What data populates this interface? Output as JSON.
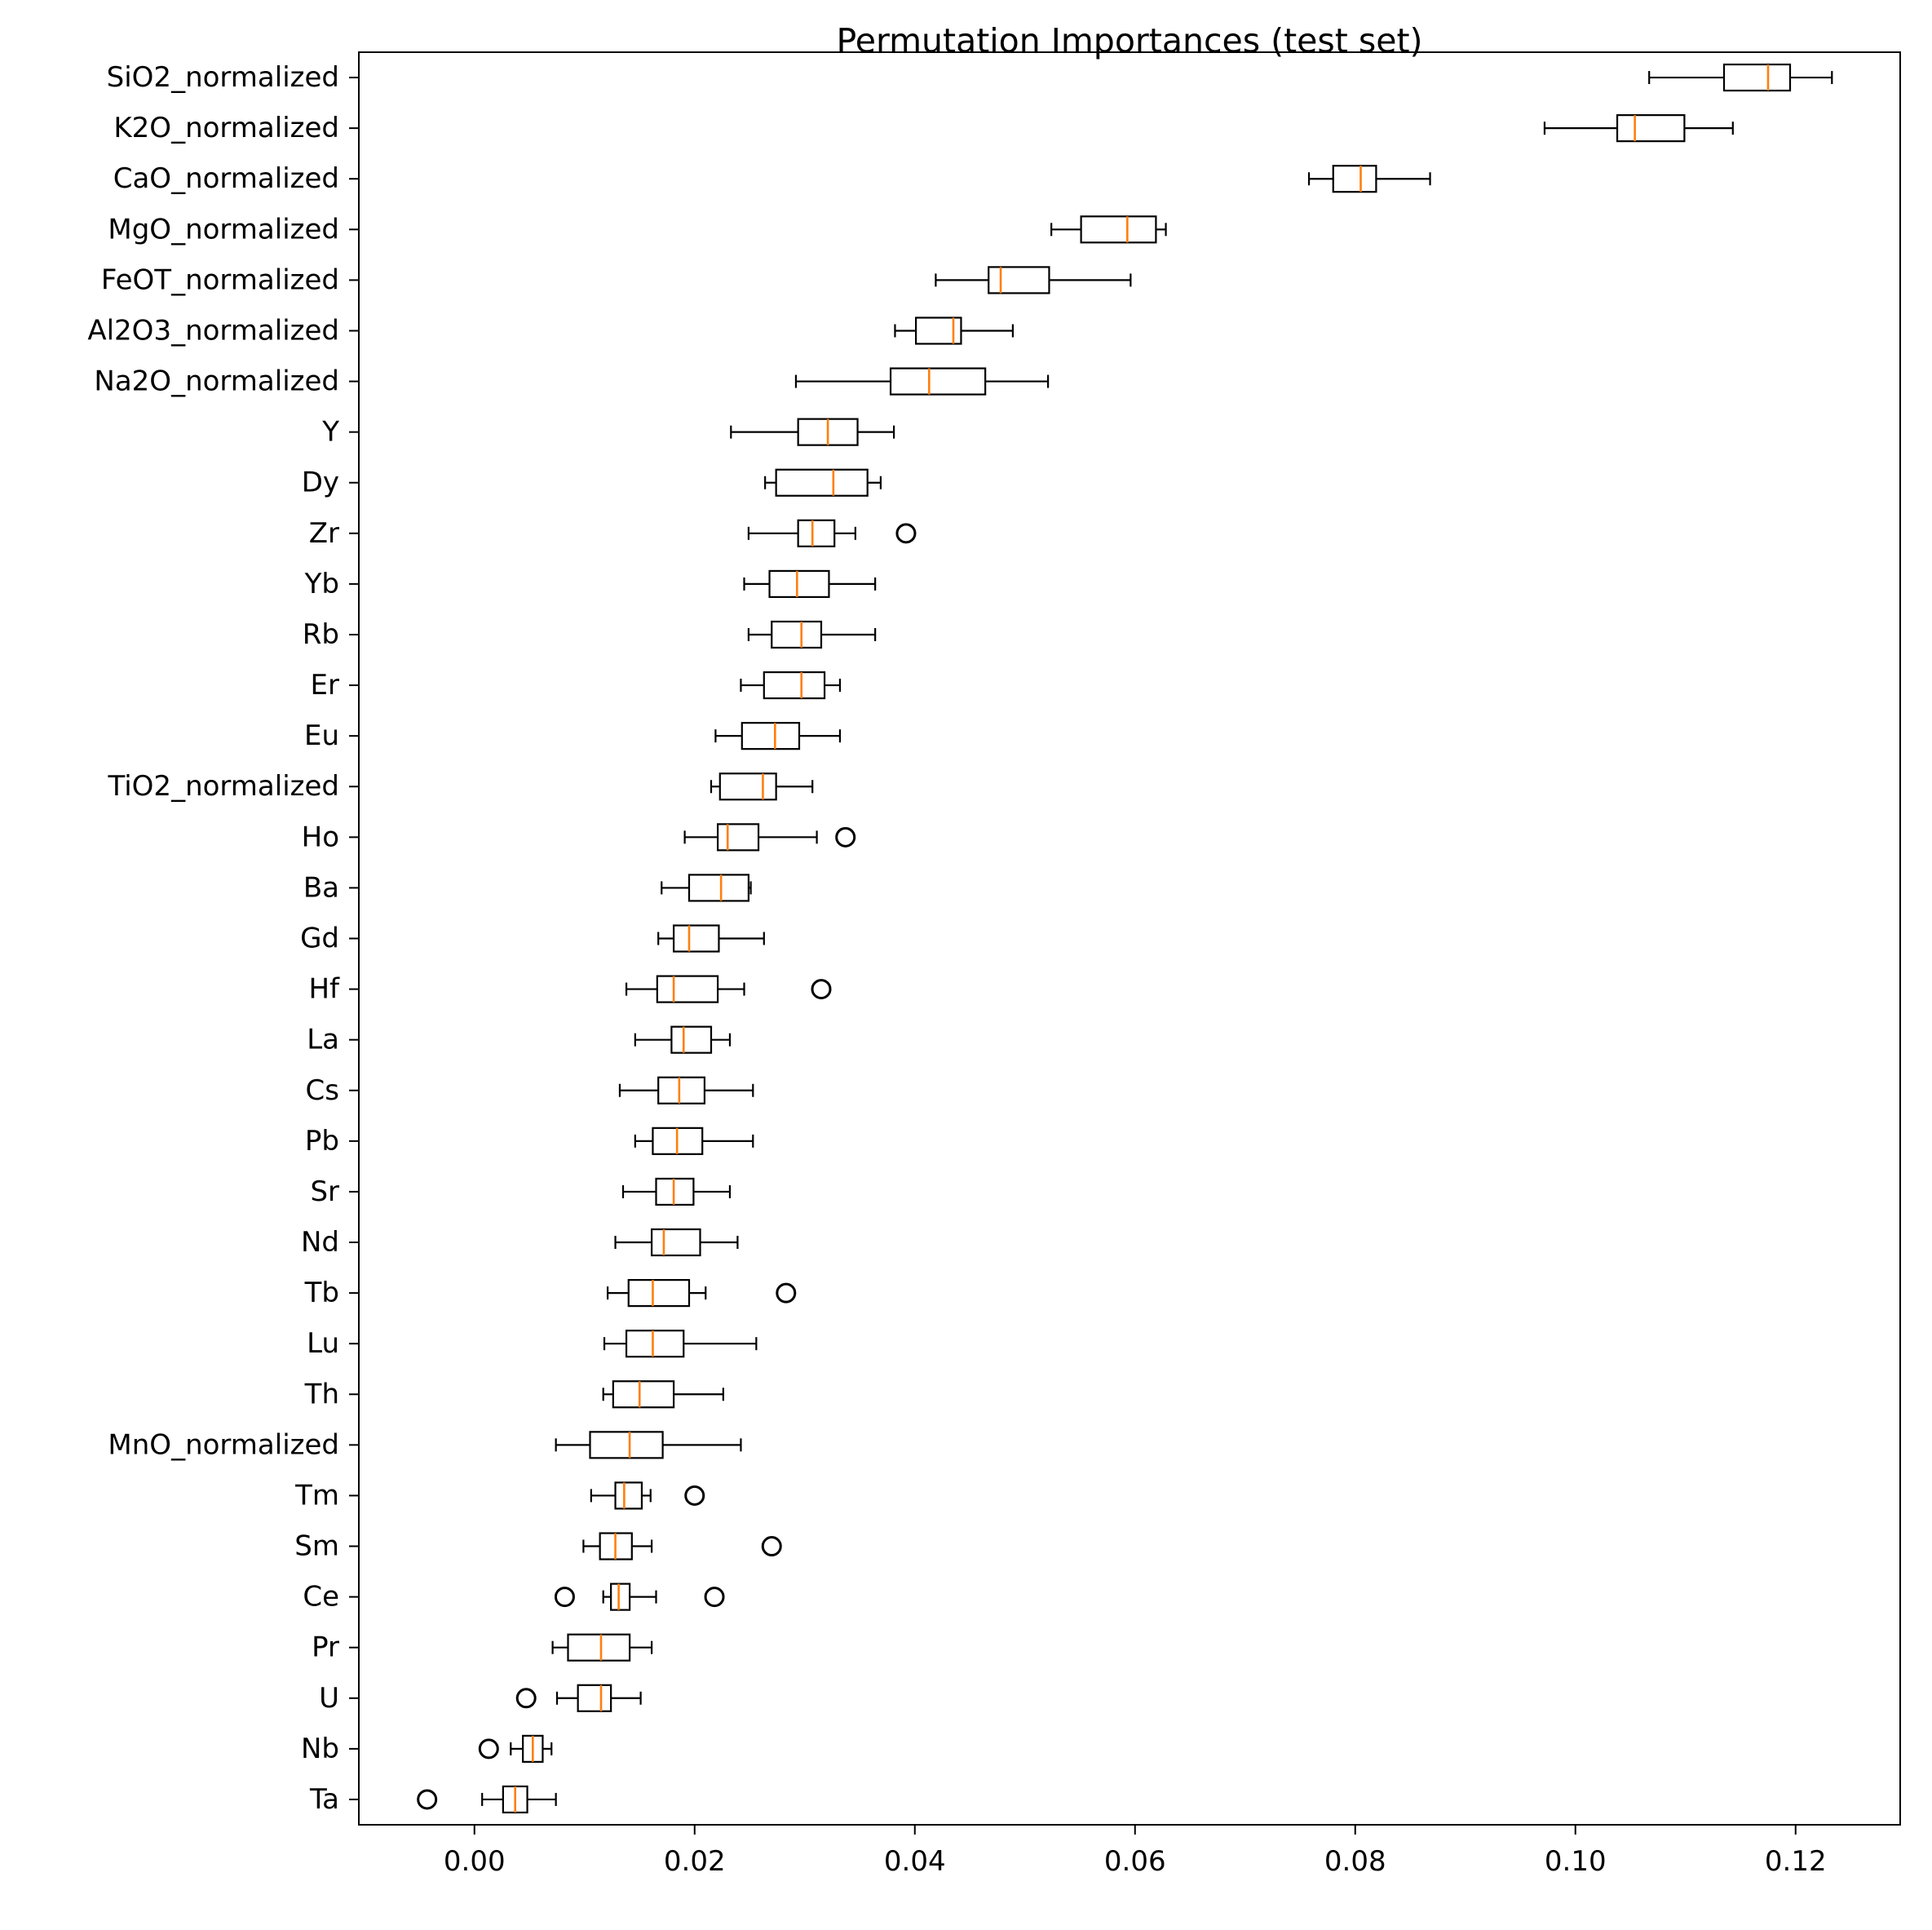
{
  "chart_data": {
    "type": "boxplot",
    "orientation": "horizontal",
    "title": "Permutation Importances (test set)",
    "xlabel": "",
    "ylabel": "",
    "xlim": [
      -0.0105,
      0.1295
    ],
    "xticks": [
      0.0,
      0.02,
      0.04,
      0.06,
      0.08,
      0.1,
      0.12
    ],
    "xtick_labels": [
      "0.00",
      "0.02",
      "0.04",
      "0.06",
      "0.08",
      "0.10",
      "0.12"
    ],
    "grid": false,
    "colors": {
      "box": "#000000",
      "median": "#ff7f0e",
      "whisker": "#000000",
      "flier": "#000000",
      "axes": "#000000"
    },
    "features": [
      {
        "label": "SiO2_normalized",
        "whisker_low": 0.1067,
        "q1": 0.1135,
        "median": 0.1175,
        "q3": 0.1195,
        "whisker_high": 0.1233,
        "outliers": []
      },
      {
        "label": "K2O_normalized",
        "whisker_low": 0.0972,
        "q1": 0.1038,
        "median": 0.1054,
        "q3": 0.1099,
        "whisker_high": 0.1143,
        "outliers": []
      },
      {
        "label": "CaO_normalized",
        "whisker_low": 0.0758,
        "q1": 0.078,
        "median": 0.0805,
        "q3": 0.0819,
        "whisker_high": 0.0868,
        "outliers": []
      },
      {
        "label": "MgO_normalized",
        "whisker_low": 0.0524,
        "q1": 0.0551,
        "median": 0.0593,
        "q3": 0.0619,
        "whisker_high": 0.0628,
        "outliers": []
      },
      {
        "label": "FeOT_normalized",
        "whisker_low": 0.0419,
        "q1": 0.0467,
        "median": 0.0478,
        "q3": 0.0522,
        "whisker_high": 0.0596,
        "outliers": []
      },
      {
        "label": "Al2O3_normalized",
        "whisker_low": 0.0382,
        "q1": 0.0401,
        "median": 0.0435,
        "q3": 0.0442,
        "whisker_high": 0.0489,
        "outliers": []
      },
      {
        "label": "Na2O_normalized",
        "whisker_low": 0.0292,
        "q1": 0.0378,
        "median": 0.0413,
        "q3": 0.0464,
        "whisker_high": 0.0521,
        "outliers": []
      },
      {
        "label": "Y",
        "whisker_low": 0.0233,
        "q1": 0.0294,
        "median": 0.0321,
        "q3": 0.0348,
        "whisker_high": 0.0381,
        "outliers": []
      },
      {
        "label": "Dy",
        "whisker_low": 0.0264,
        "q1": 0.0274,
        "median": 0.0326,
        "q3": 0.0357,
        "whisker_high": 0.0369,
        "outliers": []
      },
      {
        "label": "Zr",
        "whisker_low": 0.0249,
        "q1": 0.0294,
        "median": 0.0307,
        "q3": 0.0327,
        "whisker_high": 0.0346,
        "outliers": [
          0.0392
        ]
      },
      {
        "label": "Yb",
        "whisker_low": 0.0245,
        "q1": 0.0268,
        "median": 0.0293,
        "q3": 0.0322,
        "whisker_high": 0.0364,
        "outliers": []
      },
      {
        "label": "Rb",
        "whisker_low": 0.0249,
        "q1": 0.027,
        "median": 0.0297,
        "q3": 0.0315,
        "whisker_high": 0.0364,
        "outliers": []
      },
      {
        "label": "Er",
        "whisker_low": 0.0242,
        "q1": 0.0263,
        "median": 0.0297,
        "q3": 0.0318,
        "whisker_high": 0.0332,
        "outliers": []
      },
      {
        "label": "Eu",
        "whisker_low": 0.0219,
        "q1": 0.0243,
        "median": 0.0273,
        "q3": 0.0295,
        "whisker_high": 0.0332,
        "outliers": []
      },
      {
        "label": "TiO2_normalized",
        "whisker_low": 0.0215,
        "q1": 0.0223,
        "median": 0.0262,
        "q3": 0.0274,
        "whisker_high": 0.0307,
        "outliers": []
      },
      {
        "label": "Ho",
        "whisker_low": 0.0191,
        "q1": 0.0221,
        "median": 0.023,
        "q3": 0.0258,
        "whisker_high": 0.0311,
        "outliers": [
          0.0337
        ]
      },
      {
        "label": "Ba",
        "whisker_low": 0.017,
        "q1": 0.0195,
        "median": 0.0224,
        "q3": 0.0249,
        "whisker_high": 0.0251,
        "outliers": []
      },
      {
        "label": "Gd",
        "whisker_low": 0.0167,
        "q1": 0.0181,
        "median": 0.0195,
        "q3": 0.0222,
        "whisker_high": 0.0263,
        "outliers": []
      },
      {
        "label": "Hf",
        "whisker_low": 0.0138,
        "q1": 0.0166,
        "median": 0.0181,
        "q3": 0.0221,
        "whisker_high": 0.0245,
        "outliers": [
          0.0315
        ]
      },
      {
        "label": "La",
        "whisker_low": 0.0146,
        "q1": 0.0179,
        "median": 0.019,
        "q3": 0.0215,
        "whisker_high": 0.0232,
        "outliers": []
      },
      {
        "label": "Cs",
        "whisker_low": 0.0132,
        "q1": 0.0167,
        "median": 0.0186,
        "q3": 0.0209,
        "whisker_high": 0.0253,
        "outliers": []
      },
      {
        "label": "Pb",
        "whisker_low": 0.0146,
        "q1": 0.0162,
        "median": 0.0184,
        "q3": 0.0207,
        "whisker_high": 0.0253,
        "outliers": []
      },
      {
        "label": "Sr",
        "whisker_low": 0.0135,
        "q1": 0.0165,
        "median": 0.0181,
        "q3": 0.0199,
        "whisker_high": 0.0232,
        "outliers": []
      },
      {
        "label": "Nd",
        "whisker_low": 0.0128,
        "q1": 0.0161,
        "median": 0.0172,
        "q3": 0.0205,
        "whisker_high": 0.0239,
        "outliers": []
      },
      {
        "label": "Tb",
        "whisker_low": 0.0121,
        "q1": 0.014,
        "median": 0.0162,
        "q3": 0.0195,
        "whisker_high": 0.021,
        "outliers": [
          0.0283
        ]
      },
      {
        "label": "Lu",
        "whisker_low": 0.0118,
        "q1": 0.0138,
        "median": 0.0162,
        "q3": 0.019,
        "whisker_high": 0.0256,
        "outliers": []
      },
      {
        "label": "Th",
        "whisker_low": 0.0117,
        "q1": 0.0126,
        "median": 0.015,
        "q3": 0.0181,
        "whisker_high": 0.0226,
        "outliers": []
      },
      {
        "label": "MnO_normalized",
        "whisker_low": 0.0074,
        "q1": 0.0105,
        "median": 0.0141,
        "q3": 0.0171,
        "whisker_high": 0.0242,
        "outliers": []
      },
      {
        "label": "Tm",
        "whisker_low": 0.0106,
        "q1": 0.0128,
        "median": 0.0136,
        "q3": 0.0152,
        "whisker_high": 0.016,
        "outliers": [
          0.02
        ]
      },
      {
        "label": "Sm",
        "whisker_low": 0.0099,
        "q1": 0.0114,
        "median": 0.0128,
        "q3": 0.0143,
        "whisker_high": 0.0161,
        "outliers": [
          0.027
        ]
      },
      {
        "label": "Ce",
        "whisker_low": 0.0117,
        "q1": 0.0124,
        "median": 0.0131,
        "q3": 0.0141,
        "whisker_high": 0.0165,
        "outliers": [
          0.0082,
          0.0218
        ]
      },
      {
        "label": "Pr",
        "whisker_low": 0.0071,
        "q1": 0.0085,
        "median": 0.0115,
        "q3": 0.0141,
        "whisker_high": 0.0161,
        "outliers": []
      },
      {
        "label": "U",
        "whisker_low": 0.0075,
        "q1": 0.0094,
        "median": 0.0115,
        "q3": 0.0124,
        "whisker_high": 0.0151,
        "outliers": [
          0.0047
        ]
      },
      {
        "label": "Nb",
        "whisker_low": 0.0033,
        "q1": 0.0044,
        "median": 0.0053,
        "q3": 0.0062,
        "whisker_high": 0.007,
        "outliers": [
          0.0013
        ]
      },
      {
        "label": "Ta",
        "whisker_low": 0.0007,
        "q1": 0.0026,
        "median": 0.0037,
        "q3": 0.0048,
        "whisker_high": 0.0074,
        "outliers": [
          -0.0043
        ]
      }
    ]
  }
}
